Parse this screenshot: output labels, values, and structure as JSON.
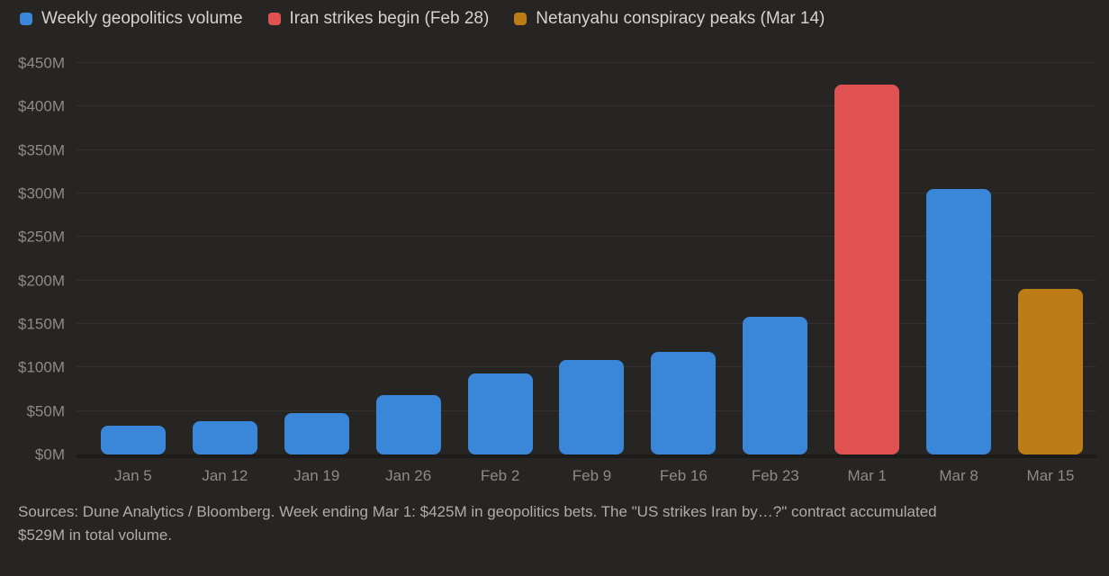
{
  "page": {
    "background": "#272523"
  },
  "colors": {
    "blue": "#3a87da",
    "red": "#e05252",
    "orange": "#bd7c16",
    "background": "#272523",
    "gridline": "#34312d",
    "baseline": "#1d1b19",
    "legend_text": "#d7d3cc",
    "tick_text": "#8e8b85",
    "footer_text": "#b0aca5"
  },
  "legend": {
    "items": [
      {
        "label": "Weekly geopolitics volume",
        "color_key": "blue"
      },
      {
        "label": "Iran strikes begin (Feb 28)",
        "color_key": "red"
      },
      {
        "label": "Netanyahu conspiracy peaks (Mar 14)",
        "color_key": "orange"
      }
    ]
  },
  "chart_data": {
    "type": "bar",
    "title": "",
    "xlabel": "",
    "ylabel": "",
    "categories": [
      "Jan 5",
      "Jan 12",
      "Jan 19",
      "Jan 26",
      "Feb 2",
      "Feb 9",
      "Feb 16",
      "Feb 23",
      "Mar 1",
      "Mar 8",
      "Mar 15"
    ],
    "values": [
      33,
      38,
      48,
      68,
      93,
      109,
      118,
      158,
      425,
      305,
      190
    ],
    "value_unit": "$M",
    "bar_color_keys": [
      "blue",
      "blue",
      "blue",
      "blue",
      "blue",
      "blue",
      "blue",
      "blue",
      "red",
      "blue",
      "orange"
    ],
    "ylim": [
      0,
      450
    ],
    "yticks": [
      {
        "value": 0,
        "label": "$0M"
      },
      {
        "value": 50,
        "label": "$50M"
      },
      {
        "value": 100,
        "label": "$100M"
      },
      {
        "value": 150,
        "label": "$150M"
      },
      {
        "value": 200,
        "label": "$200M"
      },
      {
        "value": 250,
        "label": "$250M"
      },
      {
        "value": 300,
        "label": "$300M"
      },
      {
        "value": 350,
        "label": "$350M"
      },
      {
        "value": 400,
        "label": "$400M"
      },
      {
        "value": 450,
        "label": "$450M"
      }
    ],
    "grid": true,
    "legend_position": "top-left"
  },
  "footer": {
    "lines": [
      "Sources: Dune Analytics / Bloomberg. Week ending Mar 1: $425M in geopolitics bets. The \"US strikes Iran by…?\" contract accumulated",
      "$529M in total volume."
    ]
  }
}
